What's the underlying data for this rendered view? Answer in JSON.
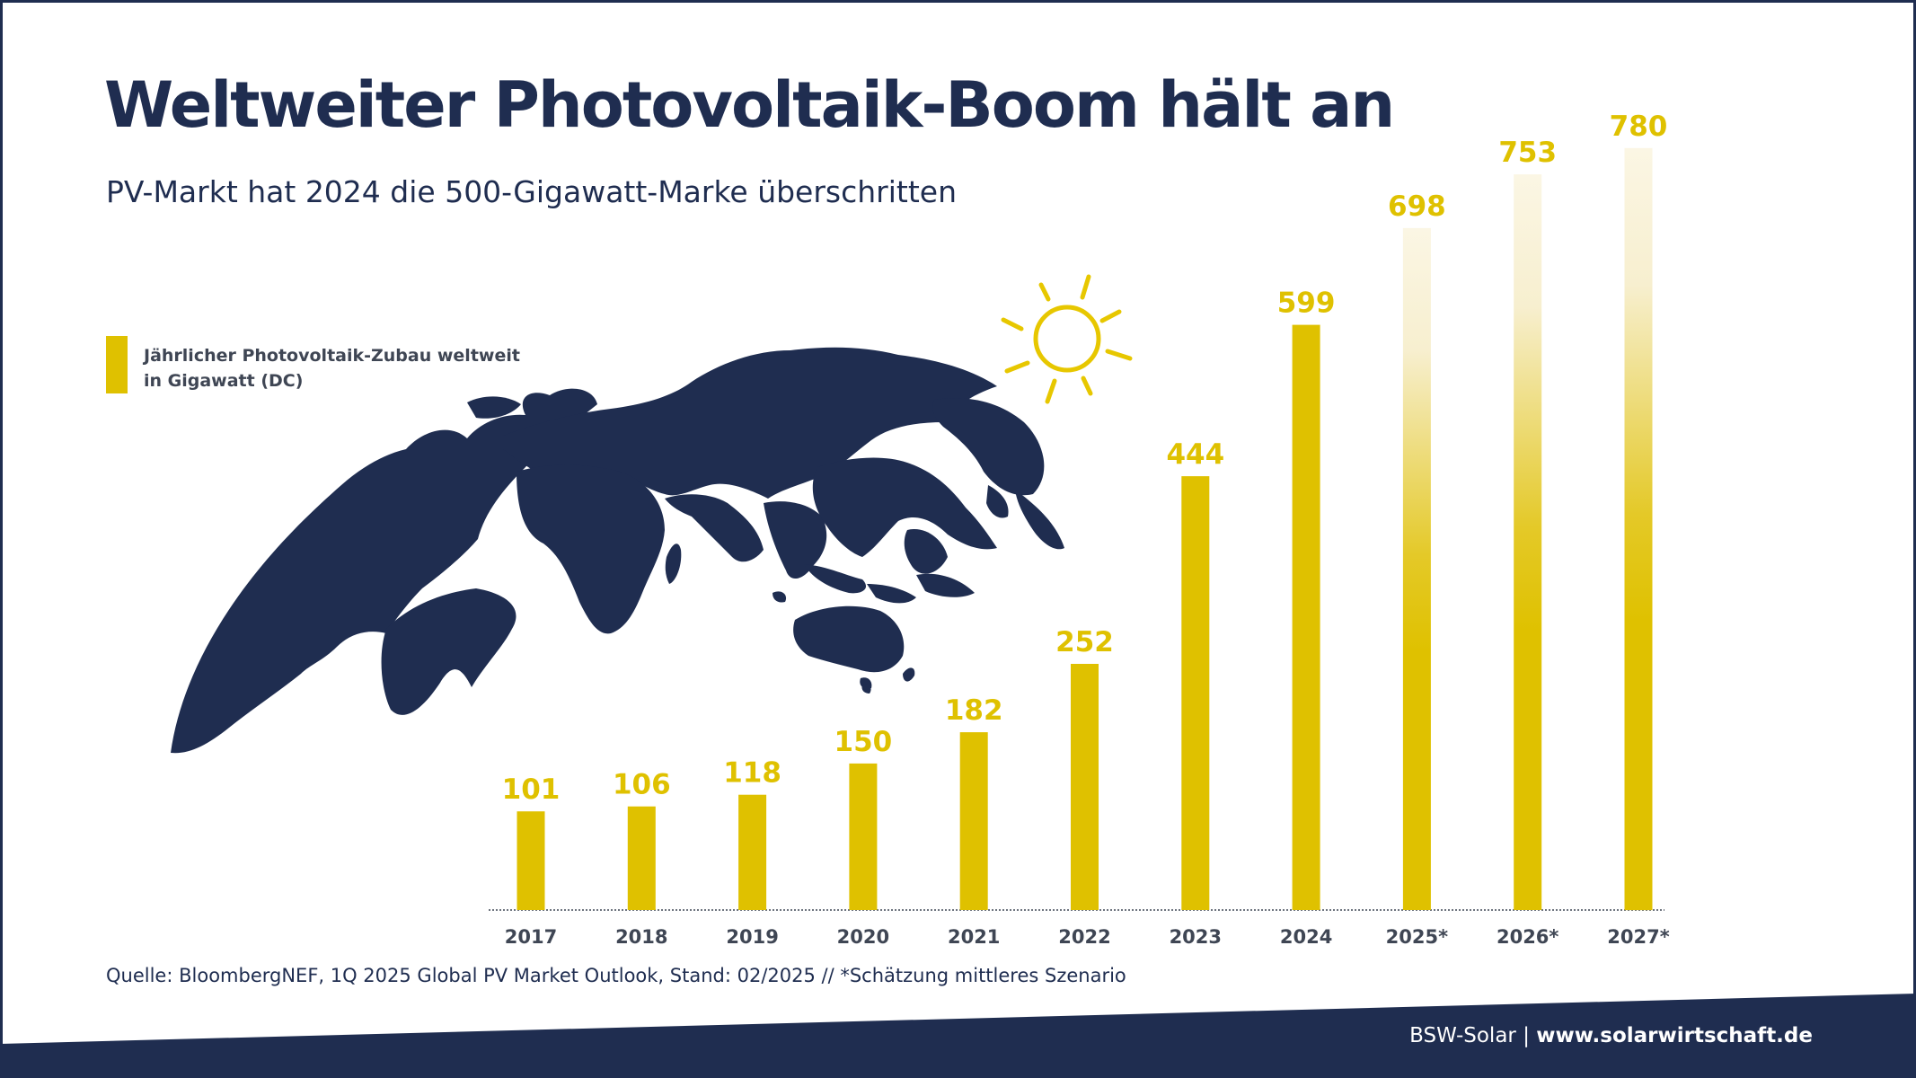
{
  "header": {
    "title": "Weltweiter Photovoltaik-Boom hält an",
    "subtitle": "PV-Markt hat 2024 die 500-Gigawatt-Marke überschritten"
  },
  "legend": {
    "line1": "Jährlicher Photovoltaik-Zubau weltweit",
    "line2": "in Gigawatt (DC)",
    "color": "#dfc100"
  },
  "chart_data": {
    "type": "bar",
    "categories": [
      "2017",
      "2018",
      "2019",
      "2020",
      "2021",
      "2022",
      "2023",
      "2024",
      "2025*",
      "2026*",
      "2027*"
    ],
    "values": [
      101,
      106,
      118,
      150,
      182,
      252,
      444,
      599,
      698,
      753,
      780
    ],
    "estimated": [
      false,
      false,
      false,
      false,
      false,
      false,
      false,
      false,
      true,
      true,
      true
    ],
    "series": [
      {
        "name": "Jährlicher Photovoltaik-Zubau weltweit in Gigawatt (DC)",
        "values": [
          101,
          106,
          118,
          150,
          182,
          252,
          444,
          599,
          698,
          753,
          780
        ]
      }
    ],
    "title": "Weltweiter Photovoltaik-Boom hält an",
    "xlabel": "",
    "ylabel": "",
    "ylim": [
      0,
      800
    ],
    "grid": false,
    "legend_position": "top-left",
    "bar_color": "#dfc100",
    "value_label_color": "#dfc100",
    "tick_label_color": "#3f4654"
  },
  "footer": {
    "source": "Quelle: BloombergNEF, 1Q 2025 Global PV Market Outlook, Stand: 02/2025 // *Schätzung mittleres Szenario",
    "brand": "BSW-Solar",
    "separator": "|",
    "url": "www.solarwirtschaft.de",
    "band_color": "#1f2d50"
  },
  "decorations": {
    "globe_icon": "globe-icon",
    "sun_icon": "sun-icon"
  }
}
